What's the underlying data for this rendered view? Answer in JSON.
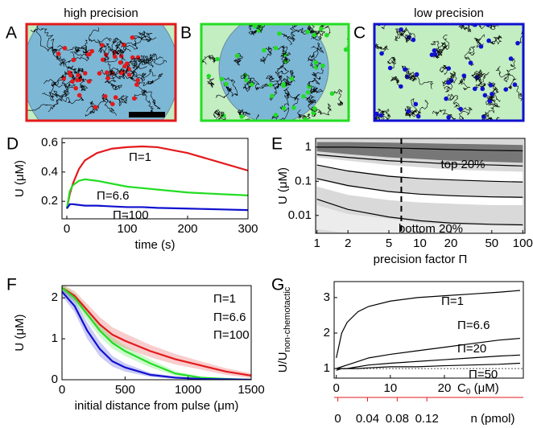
{
  "images": [
    {
      "letter": "A",
      "title": "high precision",
      "color": "#e31a1c"
    },
    {
      "letter": "B",
      "color": "#22dd22"
    },
    {
      "letter": "C",
      "title": "low precision",
      "color": "#1010d0"
    }
  ],
  "chart_data": [
    {
      "type": "line",
      "panel": "D",
      "x_label": "time (s)",
      "y_label": "U (μM)",
      "x": [
        0,
        5,
        10,
        20,
        30,
        50,
        75,
        100,
        125,
        150,
        200,
        250,
        300
      ],
      "series": [
        {
          "name": "Π=1",
          "color": "#e31a1c",
          "values": [
            0.15,
            0.25,
            0.32,
            0.42,
            0.48,
            0.53,
            0.56,
            0.57,
            0.575,
            0.57,
            0.53,
            0.47,
            0.41
          ]
        },
        {
          "name": "Π=6.6",
          "color": "#22dd22",
          "values": [
            0.15,
            0.27,
            0.31,
            0.34,
            0.35,
            0.34,
            0.32,
            0.3,
            0.29,
            0.28,
            0.26,
            0.25,
            0.24
          ]
        },
        {
          "name": "Π=100",
          "color": "#1010d0",
          "values": [
            0.15,
            0.18,
            0.18,
            0.175,
            0.17,
            0.17,
            0.165,
            0.16,
            0.16,
            0.155,
            0.15,
            0.145,
            0.14
          ]
        }
      ],
      "xlim": [
        -8,
        300
      ],
      "xticks": [
        0,
        100,
        200,
        300
      ],
      "ylim": [
        0.08,
        0.63
      ],
      "yticks": [
        0.2,
        0.4,
        0.6
      ]
    },
    {
      "type": "line",
      "panel": "E",
      "x_label": "precision factor Π",
      "y_label": "U (μM)",
      "xscale": "log",
      "yscale": "log",
      "background": "#d9d9d9",
      "x": [
        1,
        2,
        5,
        10,
        20,
        50,
        100
      ],
      "bands": [
        {
          "color": "#777777",
          "upper": [
            1.4,
            1.4,
            1.35,
            1.3,
            1.25,
            1.2,
            1.15
          ],
          "lower": [
            0.75,
            0.62,
            0.5,
            0.45,
            0.4,
            0.37,
            0.35
          ]
        },
        {
          "color": "#ffffff",
          "upper": [
            0.5,
            0.4,
            0.3,
            0.26,
            0.22,
            0.2,
            0.19
          ],
          "lower": [
            0.3,
            0.21,
            0.15,
            0.12,
            0.11,
            0.1,
            0.095
          ]
        },
        {
          "color": "#ffffff",
          "upper": [
            0.11,
            0.07,
            0.05,
            0.04,
            0.036,
            0.033,
            0.032
          ],
          "lower": [
            0.07,
            0.04,
            0.028,
            0.024,
            0.022,
            0.02,
            0.02
          ]
        },
        {
          "color": "#ececec",
          "upper": [
            0.02,
            0.011,
            0.008,
            0.006,
            0.0055,
            0.005,
            0.005
          ],
          "lower": [
            0.004,
            0.003,
            0.003,
            0.003,
            0.003,
            0.003,
            0.003
          ]
        }
      ],
      "series": [
        {
          "color": "#000000",
          "values": [
            1.0,
            1.0,
            0.95,
            0.9,
            0.85,
            0.8,
            0.78
          ]
        },
        {
          "color": "#000000",
          "values": [
            0.6,
            0.5,
            0.4,
            0.36,
            0.32,
            0.3,
            0.28
          ]
        },
        {
          "color": "#000000",
          "values": [
            0.3,
            0.2,
            0.14,
            0.12,
            0.11,
            0.1,
            0.095
          ]
        },
        {
          "color": "#000000",
          "values": [
            0.12,
            0.075,
            0.05,
            0.042,
            0.038,
            0.035,
            0.034
          ]
        },
        {
          "color": "#000000",
          "values": [
            0.03,
            0.015,
            0.009,
            0.007,
            0.006,
            0.0055,
            0.0053
          ]
        }
      ],
      "vline": 6.6,
      "annotations": [
        "top 20%",
        "bottom 20%"
      ],
      "xlim": [
        0.97,
        105
      ],
      "xticks": [
        1,
        2,
        5,
        10,
        20,
        50,
        100
      ],
      "ylim": [
        0.003,
        1.8
      ],
      "yticks": [
        0.01,
        0.1,
        1
      ]
    },
    {
      "type": "line",
      "panel": "F",
      "x_label": "initial distance from pulse (μm)",
      "y_label": "U (μM)",
      "x": [
        0,
        100,
        200,
        300,
        400,
        500,
        700,
        900,
        1100,
        1300,
        1500
      ],
      "series": [
        {
          "name": "Π=1",
          "color": "#e31a1c",
          "values": [
            2.25,
            2.05,
            1.7,
            1.35,
            1.1,
            0.95,
            0.7,
            0.5,
            0.35,
            0.2,
            0.1
          ],
          "errors": [
            0.08,
            0.12,
            0.15,
            0.18,
            0.18,
            0.18,
            0.15,
            0.13,
            0.1,
            0.08,
            0.06
          ]
        },
        {
          "name": "Π=6.6",
          "color": "#22dd22",
          "values": [
            2.25,
            2.0,
            1.6,
            1.2,
            0.9,
            0.7,
            0.4,
            0.15,
            0.05,
            0.02,
            0.0
          ],
          "errors": [
            0.08,
            0.12,
            0.15,
            0.15,
            0.14,
            0.12,
            0.1,
            0.06,
            0.03,
            0.01,
            0.0
          ]
        },
        {
          "name": "Π=100",
          "color": "#1010d0",
          "values": [
            2.15,
            1.8,
            1.2,
            0.75,
            0.45,
            0.3,
            0.12,
            0.05,
            0.02,
            0.01,
            0.0
          ],
          "errors": [
            0.1,
            0.15,
            0.2,
            0.18,
            0.13,
            0.1,
            0.05,
            0.03,
            0.01,
            0.0,
            0.0
          ]
        }
      ],
      "xlim": [
        0,
        1500
      ],
      "xticks": [
        0,
        500,
        1000,
        1500
      ],
      "ylim": [
        0,
        2.3
      ],
      "yticks": [
        0,
        1,
        2
      ]
    },
    {
      "type": "line",
      "panel": "G",
      "x_label": "C",
      "x_label_sub": "0",
      "x_label_unit": " (μM)",
      "y_label": "U/U",
      "y_label_sub": "non-chemotactic",
      "x2_label": "n (pmol)",
      "x2_color": "#e31a1c",
      "x": [
        0,
        1,
        2,
        4,
        6,
        10,
        15,
        20,
        25,
        30,
        34
      ],
      "series": [
        {
          "name": "Π=1",
          "color": "#000000",
          "values": [
            1.3,
            2.0,
            2.3,
            2.6,
            2.75,
            2.9,
            3.0,
            3.05,
            3.1,
            3.15,
            3.2
          ]
        },
        {
          "name": "Π=6.6",
          "color": "#000000",
          "values": [
            1.0,
            1.05,
            1.1,
            1.2,
            1.3,
            1.4,
            1.5,
            1.6,
            1.7,
            1.8,
            1.85
          ]
        },
        {
          "name": "Π=20",
          "color": "#000000",
          "values": [
            1.0,
            1.0,
            1.0,
            1.05,
            1.1,
            1.15,
            1.2,
            1.25,
            1.3,
            1.35,
            1.38
          ]
        },
        {
          "name": "Π=50",
          "color": "#000000",
          "values": [
            0.95,
            1.0,
            1.0,
            1.0,
            1.02,
            1.05,
            1.05,
            1.08,
            1.1,
            1.12,
            1.15
          ]
        }
      ],
      "reference_line": 1,
      "xlim": [
        -0.4,
        34.6
      ],
      "xticks": [
        0,
        10,
        20
      ],
      "ylim": [
        0.73,
        3.45
      ],
      "yticks": [
        1,
        2,
        3
      ],
      "x2lim": [
        -0.005,
        0.25
      ],
      "x2ticks": [
        0,
        0.04,
        0.08,
        0.12
      ]
    }
  ]
}
